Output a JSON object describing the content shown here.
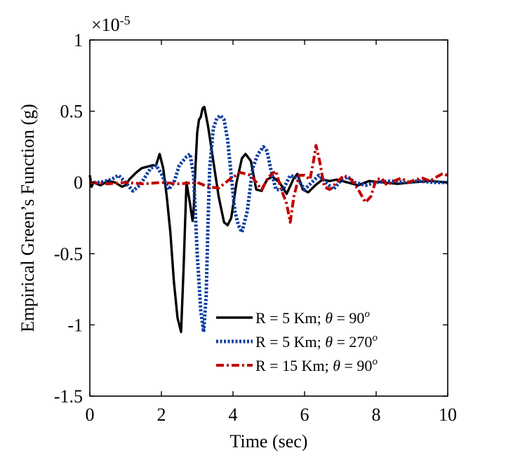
{
  "chart_data": {
    "type": "line",
    "xlabel": "Time (sec)",
    "ylabel": "Empirical Green’s Function (g)",
    "scale_label": {
      "base": "×10",
      "exp": "-5"
    },
    "xlim": [
      0,
      10
    ],
    "ylim": [
      -1.5,
      1
    ],
    "xticks": [
      0,
      2,
      4,
      6,
      8,
      10
    ],
    "yticks": [
      -1.5,
      -1,
      -0.5,
      0,
      0.5,
      1
    ],
    "xtick_labels": [
      "0",
      "2",
      "4",
      "6",
      "8",
      "10"
    ],
    "ytick_labels": [
      "-1.5",
      "-1",
      "-0.5",
      "0",
      "0.5",
      "1"
    ],
    "legend_position": "lower-right",
    "series": [
      {
        "name": "R = 5 Km; θ = 90°",
        "label": {
          "pre": "R = 5 Km; ",
          "sym": "θ",
          "mid": " = 90",
          "sup": "o"
        },
        "color": "#000000",
        "style": "solid",
        "x": [
          0,
          0.05,
          0.1,
          0.3,
          0.5,
          0.7,
          0.9,
          1.0,
          1.1,
          1.3,
          1.45,
          1.6,
          1.75,
          1.85,
          1.95,
          2.05,
          2.15,
          2.25,
          2.35,
          2.45,
          2.55,
          2.62,
          2.7,
          2.8,
          2.87,
          2.9,
          2.95,
          3.0,
          3.05,
          3.1,
          3.15,
          3.2,
          3.3,
          3.45,
          3.6,
          3.75,
          3.85,
          3.95,
          4.1,
          4.25,
          4.35,
          4.5,
          4.65,
          4.8,
          4.95,
          5.1,
          5.3,
          5.5,
          5.7,
          5.8,
          5.95,
          6.1,
          6.3,
          6.5,
          6.7,
          6.9,
          7.2,
          7.5,
          7.8,
          8.2,
          8.6,
          9.0,
          9.5,
          10
        ],
        "values": [
          0.05,
          -0.03,
          0.0,
          -0.02,
          0.01,
          0.0,
          -0.03,
          -0.02,
          0.02,
          0.07,
          0.1,
          0.11,
          0.12,
          0.12,
          0.2,
          0.1,
          -0.1,
          -0.35,
          -0.7,
          -0.95,
          -1.05,
          -0.6,
          0.0,
          -0.15,
          -0.27,
          -0.2,
          0.1,
          0.35,
          0.44,
          0.46,
          0.52,
          0.53,
          0.4,
          0.15,
          -0.1,
          -0.28,
          -0.3,
          -0.25,
          0.0,
          0.17,
          0.2,
          0.15,
          -0.05,
          -0.06,
          0.02,
          0.04,
          0.0,
          -0.08,
          0.03,
          0.06,
          -0.05,
          -0.07,
          -0.02,
          0.02,
          0.01,
          0.02,
          0.0,
          -0.02,
          0.01,
          0.0,
          -0.01,
          0.0,
          0.01,
          0.0
        ]
      },
      {
        "name": "R = 5 Km; θ = 270°",
        "label": {
          "pre": "R = 5 Km; ",
          "sym": "θ",
          "mid": " = 270",
          "sup": "o"
        },
        "color": "#0d3ea0",
        "style": "dotted",
        "x": [
          0,
          0.3,
          0.6,
          0.8,
          1.0,
          1.2,
          1.35,
          1.5,
          1.7,
          1.85,
          2.0,
          2.2,
          2.35,
          2.5,
          2.7,
          2.8,
          2.9,
          3.0,
          3.1,
          3.18,
          3.25,
          3.3,
          3.35,
          3.45,
          3.55,
          3.65,
          3.75,
          3.85,
          3.95,
          4.05,
          4.15,
          4.25,
          4.4,
          4.55,
          4.7,
          4.85,
          4.95,
          5.05,
          5.2,
          5.4,
          5.6,
          5.8,
          6.0,
          6.2,
          6.4,
          6.6,
          6.8,
          7.0,
          7.2,
          7.4,
          7.7,
          8.0,
          8.4,
          8.8,
          9.2,
          9.6,
          10
        ],
        "values": [
          0.0,
          0.0,
          0.02,
          0.05,
          0.0,
          -0.06,
          -0.03,
          0.02,
          0.1,
          0.12,
          0.06,
          -0.05,
          0.0,
          0.12,
          0.18,
          0.2,
          0.05,
          -0.5,
          -0.9,
          -1.05,
          -0.8,
          -0.3,
          0.1,
          0.38,
          0.45,
          0.47,
          0.44,
          0.3,
          0.05,
          -0.2,
          -0.3,
          -0.35,
          -0.2,
          0.1,
          0.2,
          0.25,
          0.22,
          0.1,
          -0.05,
          -0.05,
          0.05,
          0.03,
          -0.05,
          0.0,
          0.05,
          0.0,
          -0.05,
          0.01,
          0.04,
          0.0,
          -0.02,
          0.0,
          0.01,
          0.0,
          0.01,
          0.0,
          0.0
        ]
      },
      {
        "name": "R = 15 Km; θ = 90°",
        "label": {
          "pre": "R = 15 Km; ",
          "sym": "θ",
          "mid": " = 90",
          "sup": "o"
        },
        "color": "#c00000",
        "style": "dashdot",
        "x": [
          0,
          0.5,
          1.0,
          1.5,
          2.0,
          2.5,
          3.0,
          3.3,
          3.6,
          3.9,
          4.2,
          4.5,
          4.8,
          5.0,
          5.2,
          5.35,
          5.5,
          5.6,
          5.7,
          5.85,
          6.0,
          6.15,
          6.25,
          6.32,
          6.42,
          6.55,
          6.7,
          6.9,
          7.1,
          7.3,
          7.5,
          7.7,
          7.85,
          8.0,
          8.15,
          8.3,
          8.5,
          8.7,
          8.9,
          9.1,
          9.3,
          9.5,
          9.7,
          9.85,
          10
        ],
        "values": [
          0.0,
          -0.01,
          0.0,
          -0.01,
          0.0,
          -0.01,
          0.0,
          -0.03,
          -0.04,
          0.02,
          0.07,
          0.05,
          -0.05,
          0.04,
          0.08,
          -0.05,
          -0.15,
          -0.28,
          -0.1,
          0.05,
          0.05,
          0.02,
          0.15,
          0.26,
          0.15,
          -0.03,
          -0.05,
          0.0,
          0.05,
          0.02,
          -0.05,
          -0.14,
          -0.1,
          0.02,
          0.03,
          -0.02,
          0.01,
          0.03,
          0.0,
          0.02,
          0.03,
          0.01,
          0.04,
          0.06,
          0.05
        ]
      }
    ]
  }
}
